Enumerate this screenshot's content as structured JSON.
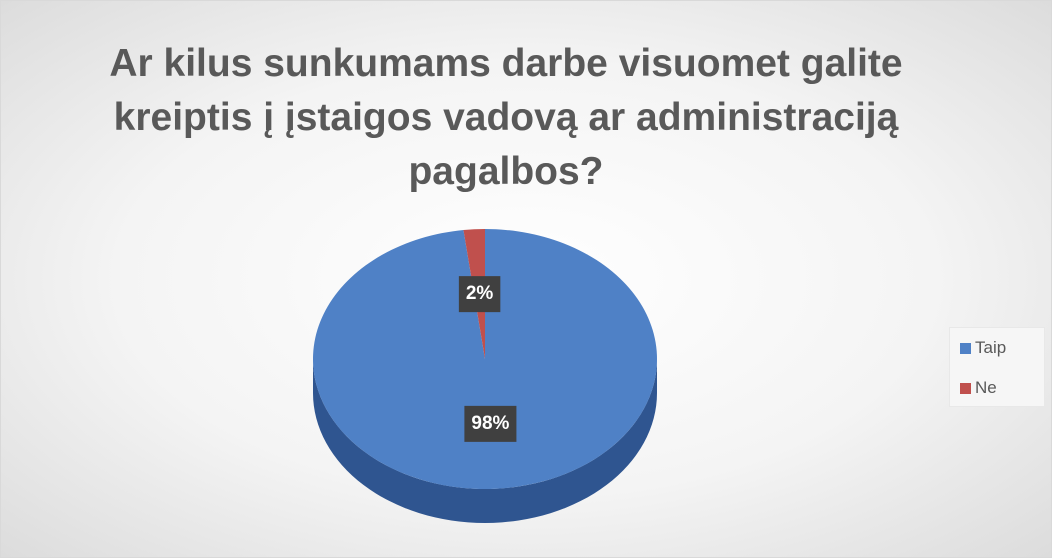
{
  "chart_data": {
    "type": "pie",
    "title": "Ar kilus sunkumams darbe visuomet galite kreiptis į įstaigos vadovą ar administraciją pagalbos?",
    "categories": [
      "Taip",
      "Ne"
    ],
    "values": [
      98,
      2
    ],
    "value_labels": [
      "98%",
      "2%"
    ],
    "colors": [
      "#4f81c6",
      "#c0504d"
    ],
    "legend": "right"
  }
}
